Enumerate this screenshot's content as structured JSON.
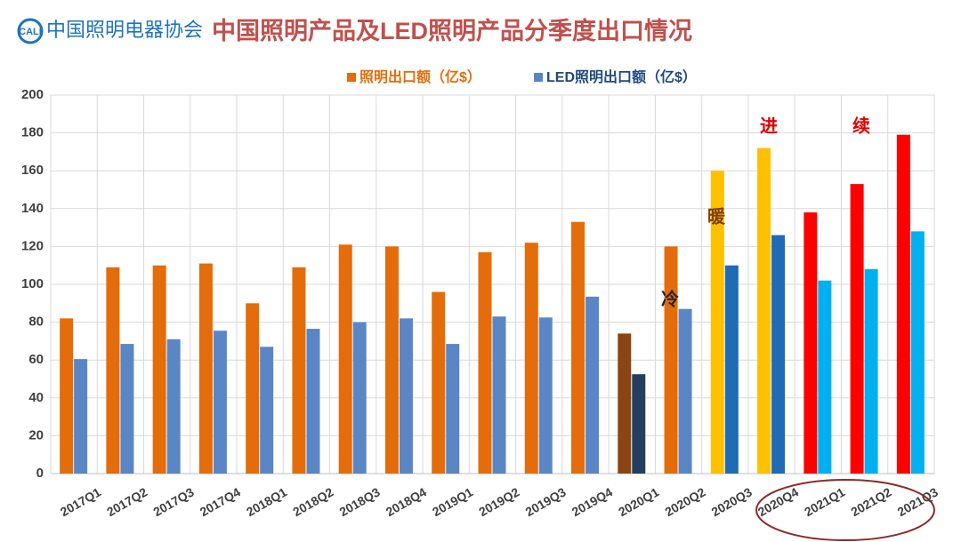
{
  "logo": "CALI",
  "organization": "中国照明电器协会",
  "chart_data": {
    "type": "bar",
    "title": "中国照明产品及LED照明产品分季度出口情况",
    "categories": [
      "2017Q1",
      "2017Q2",
      "2017Q3",
      "2017Q4",
      "2018Q1",
      "2018Q2",
      "2018Q3",
      "2018Q4",
      "2019Q1",
      "2019Q2",
      "2019Q3",
      "2019Q4",
      "2020Q1",
      "2020Q2",
      "2020Q3",
      "2020Q4",
      "2021Q1",
      "2021Q2",
      "2021Q3"
    ],
    "series": [
      {
        "name": "照明出口额（亿$）",
        "color": "#e46c0a",
        "colors": [
          "#e46c0a",
          "#e46c0a",
          "#e46c0a",
          "#e46c0a",
          "#e46c0a",
          "#e46c0a",
          "#e46c0a",
          "#e46c0a",
          "#e46c0a",
          "#e46c0a",
          "#e46c0a",
          "#e46c0a",
          "#8b4513",
          "#e46c0a",
          "#ffc000",
          "#ffc000",
          "#ff0000",
          "#ff0000",
          "#ff0000"
        ],
        "values": [
          82,
          109,
          110,
          111,
          90,
          109,
          121,
          120,
          96,
          117,
          122,
          133,
          74,
          120,
          160,
          172,
          138,
          153,
          179
        ]
      },
      {
        "name": "LED照明出口额（亿$）",
        "color": "#5b86c5",
        "colors": [
          "#5b86c5",
          "#5b86c5",
          "#5b86c5",
          "#5b86c5",
          "#5b86c5",
          "#5b86c5",
          "#5b86c5",
          "#5b86c5",
          "#5b86c5",
          "#5b86c5",
          "#5b86c5",
          "#5b86c5",
          "#243f60",
          "#5b86c5",
          "#1f6bb5",
          "#1f6bb5",
          "#00b0f0",
          "#00b0f0",
          "#00b0f0"
        ],
        "values": [
          60.5,
          68.5,
          71,
          75.5,
          67,
          76.5,
          80,
          82,
          68.5,
          83,
          82.5,
          93.5,
          52.5,
          87,
          110,
          126,
          102,
          108,
          128
        ]
      }
    ],
    "annotations": [
      {
        "text": "暖",
        "color": "#7f3f00"
      },
      {
        "text": "冷",
        "color": "#262626"
      },
      {
        "text": "进",
        "color": "#e00000"
      },
      {
        "text": "续",
        "color": "#e00000"
      }
    ],
    "ylim": [
      0,
      200
    ],
    "yticks": [
      0,
      20,
      40,
      60,
      80,
      100,
      120,
      140,
      160,
      180,
      200
    ],
    "grid": true
  }
}
